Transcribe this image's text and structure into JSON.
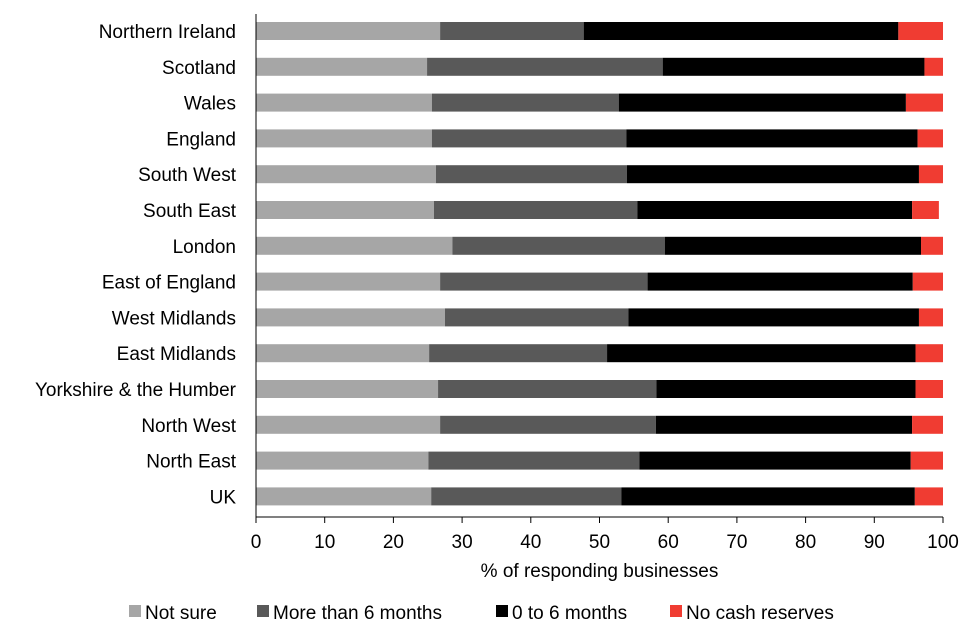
{
  "chart_data": {
    "type": "bar",
    "orientation": "horizontal",
    "stacked": true,
    "categories": [
      "Northern Ireland",
      "Scotland",
      "Wales",
      "England",
      "South West",
      "South East",
      "London",
      "East of England",
      "West Midlands",
      "East Midlands",
      "Yorkshire & the Humber",
      "North West",
      "North East",
      "UK"
    ],
    "series": [
      {
        "name": "Not sure",
        "color": "#a6a6a6",
        "values": [
          26.8,
          24.9,
          25.6,
          25.6,
          26.2,
          25.9,
          28.6,
          26.8,
          27.5,
          25.2,
          26.5,
          26.8,
          25.1,
          25.5
        ]
      },
      {
        "name": "More than 6 months",
        "color": "#595959",
        "values": [
          20.9,
          34.3,
          27.2,
          28.3,
          27.8,
          29.6,
          30.9,
          30.2,
          26.7,
          25.9,
          31.8,
          31.4,
          30.7,
          27.7
        ]
      },
      {
        "name": "0 to 6 months",
        "color": "#000000",
        "values": [
          45.8,
          38.1,
          41.8,
          42.4,
          42.5,
          40.0,
          37.3,
          38.6,
          42.3,
          44.9,
          37.7,
          37.3,
          39.5,
          42.7
        ]
      },
      {
        "name": "No cash reserves",
        "color": "#f03c32",
        "values": [
          6.5,
          2.7,
          5.4,
          3.7,
          3.5,
          3.9,
          3.2,
          4.4,
          3.5,
          4.0,
          4.0,
          4.5,
          4.7,
          4.1
        ]
      }
    ],
    "xlabel": "% of responding businesses",
    "xlim": [
      0,
      100
    ],
    "xticks": [
      0,
      10,
      20,
      30,
      40,
      50,
      60,
      70,
      80,
      90,
      100
    ],
    "grid": false,
    "legend_position": "bottom"
  }
}
